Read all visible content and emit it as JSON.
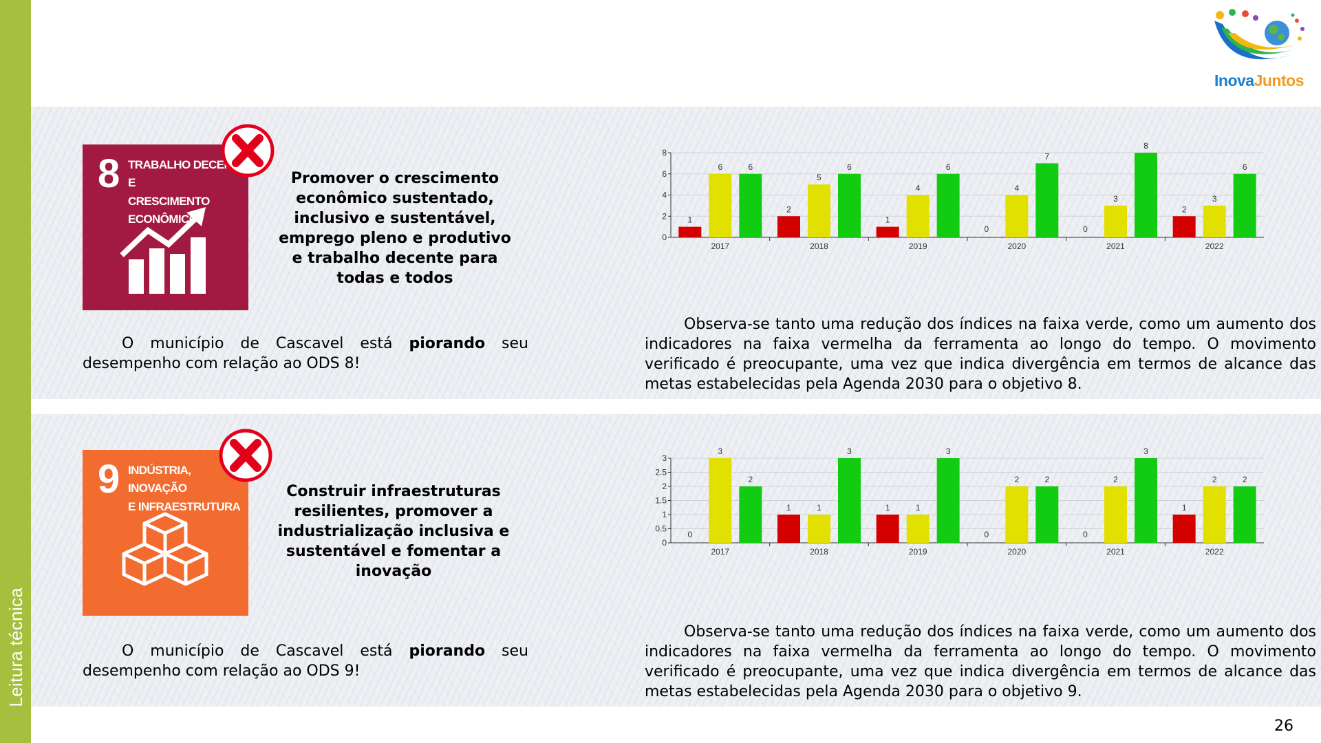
{
  "sidebar": {
    "label": "Leitura técnica"
  },
  "logo": {
    "part1": "Inova",
    "part2": "Juntos"
  },
  "colors": {
    "red": "#d40000",
    "yellow": "#e2e000",
    "green": "#12cc12",
    "sdg8": "#a21a42",
    "sdg9": "#f26b2f",
    "sidebar": "#a7bf3f"
  },
  "page_number": "26",
  "sections": [
    {
      "sdg": {
        "number": "8",
        "title": "Trabalho decente e\ncrescimento\neconômico",
        "icon": "growth-chart-icon"
      },
      "goal": "Promover o crescimento econômico sustentado, inclusivo e sustentável, emprego pleno e produtivo e trabalho decente para todas e todos",
      "status": {
        "l1_a": "O",
        "l1_b": "município",
        "l1_c": "de",
        "l1_d": "Cascavel",
        "l1_e": "está",
        "l1_f": "piorando",
        "l1_g": "seu",
        "line2": "desempenho com relação ao ODS 8!"
      },
      "analysis": "Observa-se tanto uma redução dos índices na faixa verde, como um aumento dos indicadores na faixa vermelha da ferramenta ao longo do tempo. O movimento verificado é preocupante, uma vez que indica divergência em termos de alcance das metas estabelecidas pela Agenda 2030 para o objetivo 8."
    },
    {
      "sdg": {
        "number": "9",
        "title": "Indústria, inovação\ne infraestrutura",
        "icon": "cubes-icon"
      },
      "goal": "Construir infraestruturas resilientes, promover a industrialização inclusiva e sustentável e fomentar a inovação",
      "status": {
        "l1_a": "O",
        "l1_b": "município",
        "l1_c": "de",
        "l1_d": "Cascavel",
        "l1_e": "está",
        "l1_f": "piorando",
        "l1_g": "seu",
        "line2": "desempenho com relação ao ODS 9!"
      },
      "analysis": "Observa-se tanto uma redução dos índices na faixa verde, como um aumento dos indicadores na faixa vermelha da ferramenta ao longo do tempo. O movimento verificado é preocupante, uma vez que indica divergência em termos de alcance das metas estabelecidas pela Agenda 2030 para o objetivo 9."
    }
  ],
  "chart_data": [
    {
      "type": "bar",
      "categories": [
        "2017",
        "2018",
        "2019",
        "2020",
        "2021",
        "2022"
      ],
      "series": [
        {
          "color": "#d40000",
          "values": [
            1,
            2,
            1,
            0,
            0,
            2
          ]
        },
        {
          "color": "#e2e000",
          "values": [
            6,
            5,
            4,
            4,
            3,
            3
          ]
        },
        {
          "color": "#12cc12",
          "values": [
            6,
            6,
            6,
            7,
            8,
            6
          ]
        }
      ],
      "ylim": [
        0,
        8
      ],
      "yticks": [
        "0",
        "2",
        "4",
        "6",
        "8"
      ],
      "grid": true,
      "legend": "none"
    },
    {
      "type": "bar",
      "categories": [
        "2017",
        "2018",
        "2019",
        "2020",
        "2021",
        "2022"
      ],
      "series": [
        {
          "color": "#d40000",
          "values": [
            0,
            1,
            1,
            0,
            0,
            1
          ]
        },
        {
          "color": "#e2e000",
          "values": [
            3,
            1,
            1,
            2,
            2,
            2
          ]
        },
        {
          "color": "#12cc12",
          "values": [
            2,
            3,
            3,
            2,
            3,
            2
          ]
        }
      ],
      "ylim": [
        0,
        3
      ],
      "yticks": [
        "0",
        "0.5",
        "1",
        "1.5",
        "2",
        "2.5",
        "3"
      ],
      "grid": true,
      "legend": "none"
    }
  ]
}
